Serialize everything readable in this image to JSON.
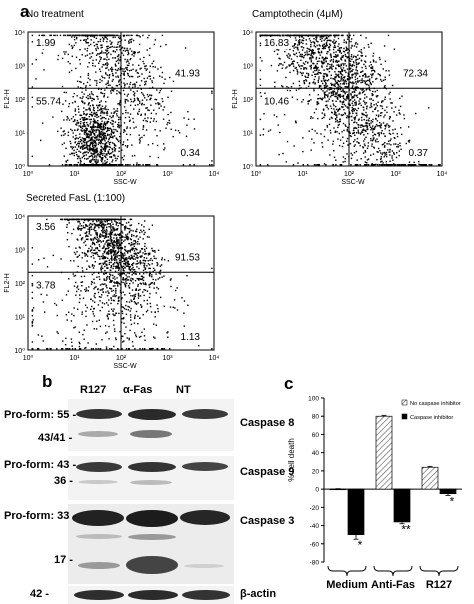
{
  "panels": {
    "a": "a",
    "b": "b",
    "c": "c"
  },
  "flow": {
    "x_axis_label": "SSC-W",
    "y_axis_label": "FL2-H",
    "tick_labels": [
      "10⁰",
      "10¹",
      "10²",
      "10³",
      "10⁴"
    ],
    "plots": [
      {
        "title": "No treatment",
        "quadrants": {
          "upper_left": "1.99",
          "upper_right": "41.93",
          "lower_left": "55.74",
          "lower_right": "0.34"
        },
        "population": "lower-left"
      },
      {
        "title": "Camptothecin (4μM)",
        "quadrants": {
          "upper_left": "16.83",
          "upper_right": "72.34",
          "lower_left": "10.46",
          "lower_right": "0.37"
        },
        "population": "diagonal"
      },
      {
        "title": "Secreted FasL (1:100)",
        "quadrants": {
          "upper_left": "3.56",
          "upper_right": "91.53",
          "lower_left": "3.78",
          "lower_right": "1.13"
        },
        "population": "upper-right"
      }
    ]
  },
  "western": {
    "lanes": [
      "R127",
      "α-Fas",
      "NT"
    ],
    "blots": [
      {
        "protein": "Caspase 8",
        "markers": [
          "Pro-form: 55 -",
          "43/41 -"
        ]
      },
      {
        "protein": "Caspase 9",
        "markers": [
          "Pro-form: 43 -",
          "36 -"
        ]
      },
      {
        "protein": "Caspase 3",
        "markers": [
          "Pro-form: 33 -",
          "17 -"
        ]
      },
      {
        "protein": "β-actin",
        "markers": [
          "42 -"
        ]
      }
    ]
  },
  "chart_data": {
    "type": "bar",
    "categories": [
      "Medium",
      "Anti-Fas",
      "R127"
    ],
    "series": [
      {
        "name": "No caspase inhibitor",
        "values": [
          0,
          80,
          24
        ],
        "errors": [
          0.5,
          1,
          1
        ],
        "color": "#ffffff",
        "pattern": "hatched"
      },
      {
        "name": "Caspase inhibitor",
        "values": [
          -50,
          -36,
          -5
        ],
        "errors": [
          5,
          2,
          2
        ],
        "color": "#000000",
        "pattern": "solid"
      }
    ],
    "significance": [
      "*",
      "**",
      "*"
    ],
    "ylabel": "% cell death",
    "ylim": [
      -80,
      100
    ],
    "yticks": [
      "100",
      "80",
      "60",
      "40",
      "20",
      "0",
      "-20",
      "-40",
      "-60",
      "-80"
    ],
    "legend_position": "top-right",
    "grid": false
  }
}
